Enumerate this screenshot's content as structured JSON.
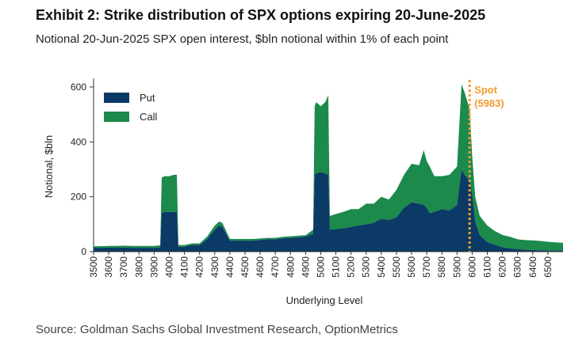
{
  "header": {
    "title": "Exhibit 2: Strike distribution of SPX options expiring 20-June-2025",
    "subtitle": "Notional 20-Jun-2025 SPX open interest, $bln notional within 1% of each point"
  },
  "footer": {
    "source": "Source: Goldman Sachs Global Investment Research, OptionMetrics"
  },
  "chart_data": {
    "type": "area",
    "stacked": true,
    "title": "Exhibit 2: Strike distribution of SPX options expiring 20-June-2025",
    "xlabel": "Underlying Level",
    "ylabel": "Notional, $bln",
    "xlim": [
      3500,
      6600
    ],
    "ylim": [
      0,
      620
    ],
    "yticks": [
      0,
      200,
      400,
      600
    ],
    "xticks": [
      3500,
      3600,
      3700,
      3800,
      3900,
      4000,
      4100,
      4200,
      4300,
      4400,
      4500,
      4600,
      4700,
      4800,
      4900,
      5000,
      5100,
      5200,
      5300,
      5400,
      5500,
      5600,
      5700,
      5800,
      5900,
      6000,
      6100,
      6200,
      6300,
      6400,
      6500
    ],
    "legend_position": "top-left",
    "colors": {
      "put": "#0b3a66",
      "call": "#1b8a4b",
      "spot": "#f39c34"
    },
    "x": [
      3500,
      3550,
      3600,
      3650,
      3700,
      3750,
      3800,
      3850,
      3900,
      3940,
      3950,
      3970,
      4000,
      4030,
      4050,
      4060,
      4100,
      4150,
      4200,
      4250,
      4300,
      4330,
      4350,
      4380,
      4400,
      4450,
      4500,
      4550,
      4600,
      4650,
      4700,
      4750,
      4800,
      4850,
      4900,
      4950,
      4960,
      4970,
      5000,
      5030,
      5050,
      5060,
      5100,
      5150,
      5200,
      5250,
      5300,
      5350,
      5400,
      5450,
      5500,
      5550,
      5600,
      5650,
      5680,
      5700,
      5720,
      5750,
      5800,
      5850,
      5900,
      5930,
      5950,
      5983,
      6000,
      6020,
      6050,
      6100,
      6150,
      6200,
      6250,
      6300,
      6350,
      6400,
      6450,
      6500,
      6550,
      6600
    ],
    "series": [
      {
        "name": "Put",
        "values": [
          14,
          14,
          15,
          14,
          15,
          14,
          14,
          14,
          14,
          15,
          140,
          145,
          145,
          145,
          145,
          18,
          18,
          24,
          24,
          45,
          80,
          95,
          90,
          60,
          40,
          40,
          40,
          40,
          42,
          45,
          45,
          48,
          50,
          52,
          55,
          65,
          280,
          285,
          290,
          285,
          280,
          80,
          82,
          85,
          90,
          95,
          100,
          105,
          120,
          115,
          125,
          160,
          180,
          175,
          170,
          160,
          140,
          145,
          155,
          150,
          170,
          300,
          280,
          260,
          210,
          110,
          60,
          35,
          25,
          16,
          12,
          9,
          7,
          6,
          5,
          4,
          4,
          4
        ]
      },
      {
        "name": "Call",
        "values": [
          6,
          6,
          6,
          7,
          7,
          7,
          7,
          7,
          7,
          8,
          130,
          130,
          130,
          135,
          135,
          6,
          6,
          6,
          6,
          10,
          15,
          15,
          15,
          10,
          6,
          6,
          6,
          6,
          6,
          5,
          5,
          6,
          6,
          6,
          5,
          15,
          250,
          260,
          240,
          260,
          290,
          50,
          55,
          60,
          65,
          60,
          75,
          70,
          80,
          75,
          100,
          120,
          140,
          140,
          200,
          170,
          170,
          130,
          120,
          130,
          140,
          310,
          300,
          260,
          140,
          90,
          70,
          60,
          50,
          45,
          42,
          36,
          35,
          35,
          34,
          32,
          30,
          28
        ]
      }
    ],
    "spot": {
      "value": 5983,
      "label": "Spot",
      "value_label": "(5983)"
    }
  }
}
